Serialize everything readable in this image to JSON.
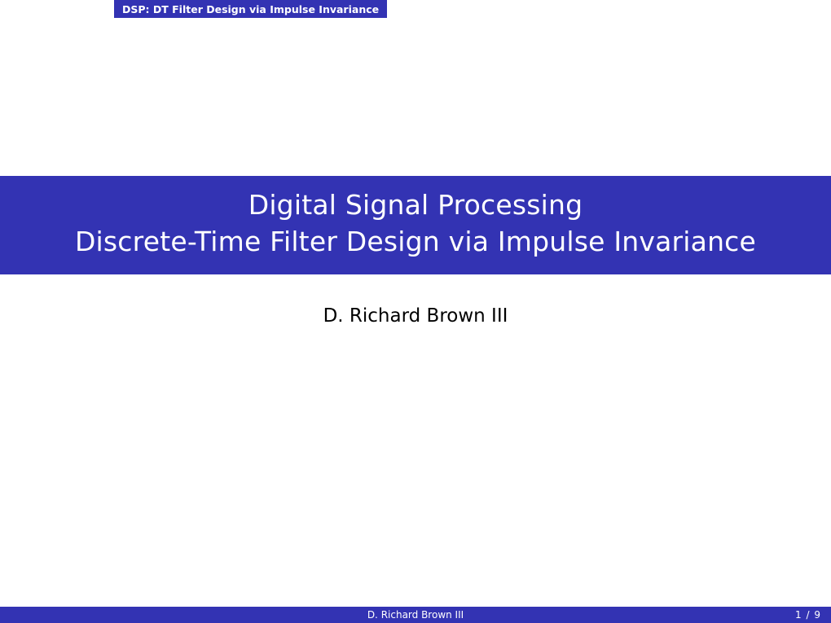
{
  "header": {
    "tab": "DSP: DT Filter Design via Impulse Invariance"
  },
  "title": {
    "line1": "Digital Signal Processing",
    "line2": "Discrete-Time Filter Design via Impulse Invariance"
  },
  "author": "D. Richard Brown III",
  "footer": {
    "center": "D. Richard Brown III",
    "page": "1 / 9"
  },
  "colors": {
    "theme": "#3333b3",
    "bg": "#ffffff",
    "text_on_theme": "#ffffff",
    "body_text": "#000000"
  }
}
